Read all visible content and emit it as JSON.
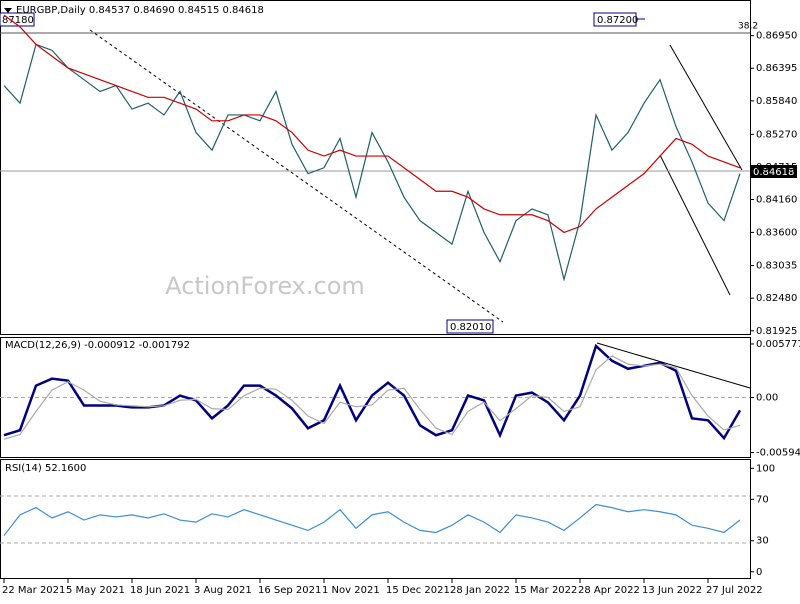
{
  "chart_data": [
    {
      "type": "line",
      "title": "EURGBP,Daily 0.84537 0.84690 0.84515 0.84618",
      "watermark": "ActionForex.com",
      "annotations": [
        "0.87200",
        "0.82010",
        "87180",
        "38.2"
      ],
      "last_price": "0.84618",
      "categories": [
        "22 Mar 2021",
        null,
        null,
        null,
        "5 May 2021",
        null,
        null,
        null,
        "18 Jun 2021",
        null,
        null,
        null,
        "3 Aug 2021",
        null,
        null,
        null,
        "16 Sep 2021",
        null,
        null,
        null,
        "1 Nov 2021",
        null,
        null,
        null,
        "15 Dec 2021",
        null,
        null,
        null,
        "28 Jan 2022",
        null,
        null,
        null,
        "15 Mar 2022",
        null,
        null,
        null,
        "28 Apr 2022",
        null,
        null,
        null,
        "13 Jun 2022",
        null,
        null,
        null,
        "27 Jul 2022",
        null,
        null
      ],
      "ylim": [
        0.8187,
        0.8754
      ],
      "yticks": [
        {
          "value": 0.8695,
          "label": "0.86950"
        },
        0.86395,
        {
          "value": 0.8584,
          "label": "0.85840"
        },
        {
          "value": 0.8527,
          "label": "0.85270"
        },
        0.84715,
        {
          "value": 0.8416,
          "label": "0.84160"
        },
        {
          "value": 0.836,
          "label": "0.83600"
        },
        0.83035,
        {
          "value": 0.8248,
          "label": "0.82480"
        },
        0.81925
      ],
      "series": [
        {
          "color": "#1f5f6b",
          "values": [
            0.861,
            0.858,
            0.868,
            0.867,
            0.864,
            0.862,
            0.86,
            0.861,
            0.857,
            0.858,
            0.856,
            0.86,
            0.853,
            0.85,
            0.856,
            0.856,
            0.855,
            0.86,
            0.851,
            0.846,
            0.847,
            0.852,
            0.842,
            0.853,
            0.848,
            0.842,
            0.838,
            0.836,
            0.834,
            0.843,
            0.836,
            0.831,
            0.838,
            0.84,
            0.839,
            0.828,
            0.838,
            0.856,
            0.85,
            0.853,
            0.858,
            0.862,
            0.854,
            0.848,
            0.841,
            0.838,
            0.846
          ]
        },
        {
          "color": "#cc0000",
          "values": [
            0.873,
            0.871,
            0.868,
            0.866,
            0.864,
            0.863,
            0.862,
            0.861,
            0.86,
            0.859,
            0.859,
            0.858,
            0.857,
            0.855,
            0.855,
            0.856,
            0.856,
            0.855,
            0.853,
            0.85,
            0.849,
            0.85,
            0.849,
            0.849,
            0.849,
            0.847,
            0.845,
            0.843,
            0.843,
            0.842,
            0.84,
            0.839,
            0.839,
            0.839,
            0.838,
            0.836,
            0.837,
            0.84,
            0.842,
            0.844,
            0.846,
            0.849,
            0.852,
            0.851,
            0.849,
            0.848,
            0.847
          ]
        }
      ]
    },
    {
      "type": "line",
      "title": "MACD(12,26,9) -0.000912 -0.001792",
      "ylim": [
        -0.00642,
        0.00642
      ],
      "yticks": [
        0.005777,
        {
          "value": 0,
          "label": "0.00"
        },
        -0.005944
      ],
      "series": [
        {
          "color": "#000080",
          "values": [
            -0.00407,
            -0.00353,
            0.00128,
            0.00203,
            0.00182,
            -0.00086,
            -0.00086,
            -0.00086,
            -0.00107,
            -0.00107,
            -0.00086,
            0.00021,
            -0.00032,
            -0.00225,
            -0.00086,
            0.00128,
            0.00128,
            0.00021,
            -0.00118,
            -0.00332,
            -0.00246,
            0.00128,
            -0.00246,
            0.00021,
            0.0016,
            0.00021,
            -0.003,
            -0.00407,
            -0.00353,
            0.00021,
            -0.00032,
            -0.00407,
            0.00021,
            0.00053,
            -0.00053,
            -0.00246,
            0.00021,
            0.00556,
            0.00396,
            0.0031,
            0.00342,
            0.00374,
            0.00289,
            -0.00225,
            -0.00246,
            -0.00439,
            -0.00139
          ]
        },
        {
          "color": "#aaaaaa",
          "values": [
            -0.0045,
            -0.004,
            -0.0015,
            0.0008,
            0.0017,
            0.0008,
            -0.0004,
            -0.0008,
            -0.0009,
            -0.001,
            -0.0009,
            -0.0003,
            -0.0002,
            -0.0012,
            -0.0013,
            0.0002,
            0.001,
            0.0009,
            -0.0003,
            -0.002,
            -0.0028,
            -0.0005,
            -0.001,
            -0.0008,
            0.0008,
            0.001,
            -0.0013,
            -0.0033,
            -0.004,
            -0.0015,
            -0.0005,
            -0.0025,
            -0.0012,
            0.0002,
            0,
            -0.0015,
            -0.001,
            0.003,
            0.0045,
            0.0036,
            0.0034,
            0.0036,
            0.0032,
            0.0002,
            -0.002,
            -0.0035,
            -0.003
          ]
        }
      ]
    },
    {
      "type": "line",
      "title": "RSI(14) 52.1600",
      "ylim": [
        -6,
        108
      ],
      "yticks": [
        100,
        70,
        30,
        0
      ],
      "series": [
        {
          "color": "#3a8fd6",
          "values": [
            35,
            55,
            62,
            52,
            58,
            50,
            55,
            53,
            55,
            52,
            56,
            50,
            48,
            56,
            53,
            60,
            55,
            50,
            45,
            40,
            48,
            60,
            42,
            55,
            58,
            48,
            40,
            38,
            45,
            55,
            48,
            38,
            55,
            52,
            48,
            40,
            52,
            65,
            62,
            58,
            60,
            58,
            55,
            45,
            42,
            38,
            50
          ]
        }
      ]
    }
  ]
}
